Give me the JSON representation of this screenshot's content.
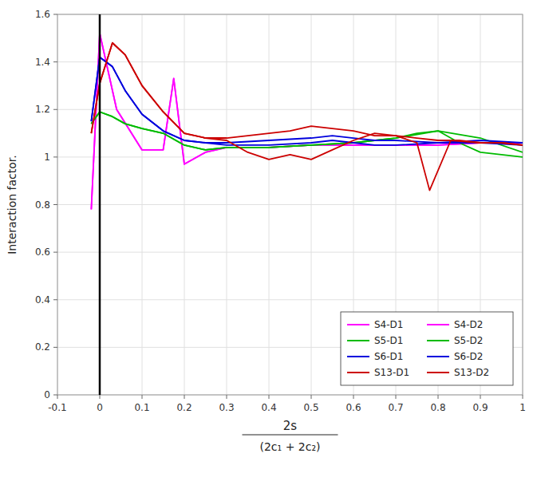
{
  "chart_data": {
    "type": "line",
    "ylabel": "Interaction factor.",
    "annotations": [
      {
        "text": "2s"
      },
      {
        "text": "(2c₁ + 2c₂)"
      }
    ],
    "xlim": [
      -0.1,
      1.0
    ],
    "ylim": [
      0,
      1.6
    ],
    "xticks": [
      -0.1,
      0,
      0.1,
      0.2,
      0.3,
      0.4,
      0.5,
      0.6,
      0.7,
      0.8,
      0.9,
      1
    ],
    "yticks": [
      0,
      0.2,
      0.4,
      0.6,
      0.8,
      1,
      1.2,
      1.4,
      1.6
    ],
    "grid": true,
    "legend": "lower right",
    "vlines": [
      0
    ],
    "series": [
      {
        "name": "S4-D1",
        "color": "#ff00ff",
        "x": [
          -0.02,
          0.0,
          0.04,
          0.1,
          0.15,
          0.175,
          0.2,
          0.25,
          0.3,
          0.35,
          0.4,
          0.5,
          0.6,
          0.7,
          0.8,
          0.9,
          1.0
        ],
        "values": [
          0.78,
          1.52,
          1.2,
          1.03,
          1.03,
          1.33,
          0.97,
          1.02,
          1.04,
          1.04,
          1.04,
          1.05,
          1.05,
          1.05,
          1.05,
          1.06,
          1.06
        ]
      },
      {
        "name": "S4-D2",
        "color": "#ff00ff",
        "x": [
          -0.02,
          0.0,
          0.04,
          0.1,
          0.15,
          0.175,
          0.2,
          0.25,
          0.3,
          0.35,
          0.4,
          0.5,
          0.6,
          0.7,
          0.8,
          0.9,
          1.0
        ],
        "values": [
          0.78,
          1.52,
          1.2,
          1.03,
          1.03,
          1.33,
          0.97,
          1.02,
          1.04,
          1.04,
          1.04,
          1.05,
          1.05,
          1.05,
          1.05,
          1.06,
          1.06
        ]
      },
      {
        "name": "S5-D1",
        "color": "#00bb00",
        "x": [
          -0.02,
          0.0,
          0.03,
          0.06,
          0.1,
          0.15,
          0.2,
          0.25,
          0.3,
          0.4,
          0.5,
          0.6,
          0.7,
          0.8,
          0.9,
          1.0
        ],
        "values": [
          1.14,
          1.19,
          1.17,
          1.14,
          1.12,
          1.1,
          1.05,
          1.03,
          1.04,
          1.04,
          1.05,
          1.06,
          1.08,
          1.11,
          1.08,
          1.02
        ]
      },
      {
        "name": "S5-D2",
        "color": "#00bb00",
        "x": [
          -0.02,
          0.0,
          0.03,
          0.06,
          0.1,
          0.15,
          0.2,
          0.25,
          0.3,
          0.4,
          0.5,
          0.6,
          0.7,
          0.75,
          0.8,
          0.85,
          0.9,
          1.0
        ],
        "values": [
          1.14,
          1.19,
          1.17,
          1.14,
          1.12,
          1.1,
          1.05,
          1.03,
          1.04,
          1.04,
          1.05,
          1.06,
          1.08,
          1.1,
          1.11,
          1.06,
          1.02,
          1.0
        ]
      },
      {
        "name": "S6-D1",
        "color": "#0000dd",
        "x": [
          -0.02,
          0.0,
          0.03,
          0.06,
          0.1,
          0.15,
          0.2,
          0.25,
          0.3,
          0.4,
          0.5,
          0.55,
          0.6,
          0.65,
          0.7,
          0.8,
          0.9,
          1.0
        ],
        "values": [
          1.15,
          1.42,
          1.38,
          1.28,
          1.18,
          1.11,
          1.07,
          1.06,
          1.06,
          1.07,
          1.08,
          1.09,
          1.08,
          1.07,
          1.07,
          1.06,
          1.07,
          1.06
        ]
      },
      {
        "name": "S6-D2",
        "color": "#0000dd",
        "x": [
          -0.02,
          0.0,
          0.03,
          0.06,
          0.1,
          0.15,
          0.2,
          0.25,
          0.3,
          0.4,
          0.5,
          0.55,
          0.6,
          0.65,
          0.7,
          0.8,
          0.9,
          1.0
        ],
        "values": [
          1.15,
          1.42,
          1.38,
          1.28,
          1.18,
          1.11,
          1.07,
          1.06,
          1.05,
          1.05,
          1.06,
          1.07,
          1.06,
          1.05,
          1.05,
          1.06,
          1.06,
          1.05
        ]
      },
      {
        "name": "S13-D1",
        "color": "#cc0000",
        "x": [
          -0.02,
          0.0,
          0.03,
          0.06,
          0.1,
          0.15,
          0.2,
          0.25,
          0.3,
          0.35,
          0.4,
          0.45,
          0.5,
          0.55,
          0.6,
          0.65,
          0.7,
          0.75,
          0.8,
          0.85,
          0.9,
          0.95,
          1.0
        ],
        "values": [
          1.1,
          1.31,
          1.48,
          1.43,
          1.3,
          1.19,
          1.1,
          1.08,
          1.08,
          1.09,
          1.1,
          1.11,
          1.13,
          1.12,
          1.11,
          1.09,
          1.09,
          1.08,
          1.07,
          1.07,
          1.06,
          1.06,
          1.05
        ]
      },
      {
        "name": "S13-D2",
        "color": "#cc0000",
        "x": [
          -0.02,
          0.0,
          0.03,
          0.06,
          0.1,
          0.15,
          0.2,
          0.25,
          0.3,
          0.35,
          0.4,
          0.45,
          0.5,
          0.55,
          0.6,
          0.65,
          0.7,
          0.75,
          0.78,
          0.83,
          0.9,
          0.95,
          1.0
        ],
        "values": [
          1.1,
          1.31,
          1.48,
          1.43,
          1.3,
          1.19,
          1.1,
          1.08,
          1.07,
          1.02,
          0.99,
          1.01,
          0.99,
          1.03,
          1.07,
          1.1,
          1.09,
          1.06,
          0.86,
          1.07,
          1.06,
          1.06,
          1.05
        ]
      }
    ]
  }
}
